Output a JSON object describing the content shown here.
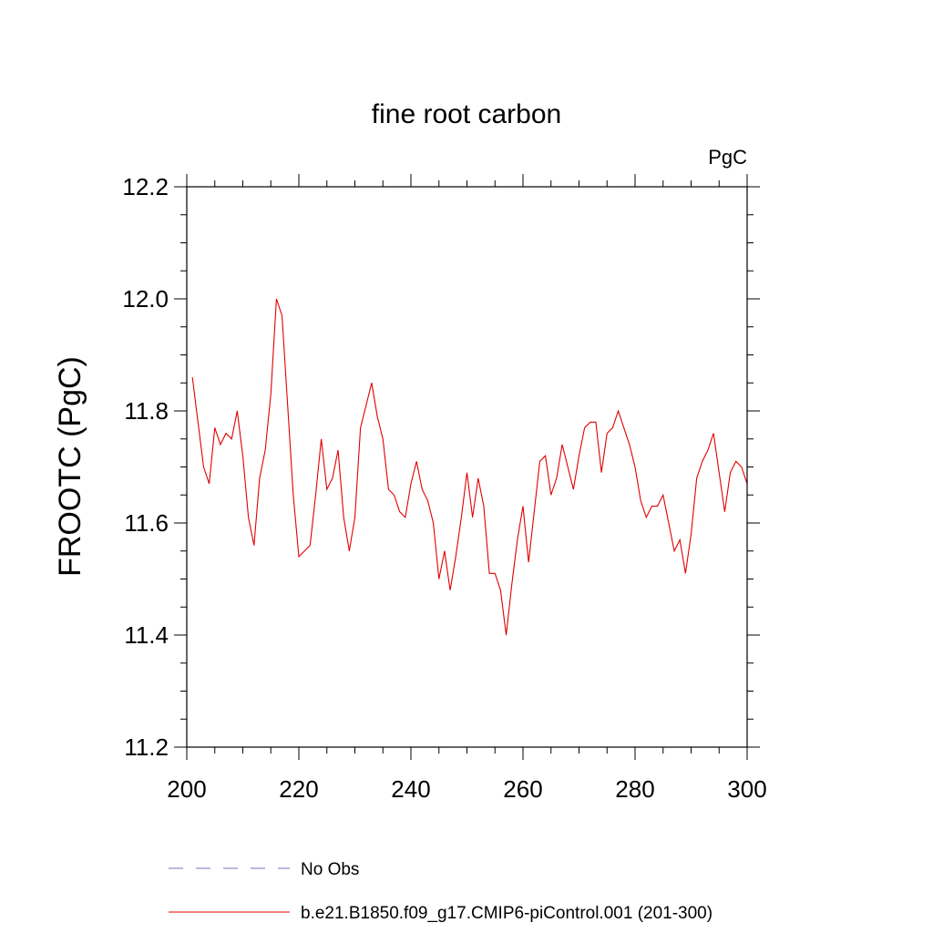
{
  "chart_data": {
    "type": "line",
    "title": "fine root carbon",
    "units": "PgC",
    "xlabel": "",
    "ylabel": "FROOTC  (PgC)",
    "xlim": [
      200,
      300
    ],
    "ylim": [
      11.2,
      12.2
    ],
    "x_ticks": [
      200,
      220,
      240,
      260,
      280,
      300
    ],
    "x_tick_labels": [
      "200",
      "220",
      "240",
      "260",
      "280",
      "300"
    ],
    "y_ticks": [
      11.2,
      11.4,
      11.6,
      11.8,
      12.0,
      12.2
    ],
    "y_tick_labels": [
      "11.2",
      "11.4",
      "11.6",
      "11.8",
      "12.0",
      "12.2"
    ],
    "grid": false,
    "legend_position": "bottom",
    "series": [
      {
        "name": "No Obs",
        "color": "#7a6fc0",
        "style": "dashed",
        "values": []
      },
      {
        "name": "b.e21.B1850.f09_g17.CMIP6-piControl.001 (201-300)",
        "color": "#e00000",
        "style": "solid",
        "x_start": 201,
        "x_step": 1,
        "values": [
          11.86,
          11.78,
          11.7,
          11.67,
          11.77,
          11.74,
          11.76,
          11.75,
          11.8,
          11.72,
          11.61,
          11.56,
          11.68,
          11.73,
          11.83,
          12.0,
          11.97,
          11.81,
          11.65,
          11.54,
          11.55,
          11.56,
          11.65,
          11.75,
          11.66,
          11.68,
          11.73,
          11.61,
          11.55,
          11.61,
          11.77,
          11.81,
          11.85,
          11.79,
          11.75,
          11.66,
          11.65,
          11.62,
          11.61,
          11.67,
          11.71,
          11.66,
          11.64,
          11.6,
          11.5,
          11.55,
          11.48,
          11.54,
          11.61,
          11.69,
          11.61,
          11.68,
          11.63,
          11.51,
          11.51,
          11.48,
          11.4,
          11.49,
          11.57,
          11.63,
          11.53,
          11.62,
          11.71,
          11.72,
          11.65,
          11.68,
          11.74,
          11.7,
          11.66,
          11.72,
          11.77,
          11.78,
          11.78,
          11.69,
          11.76,
          11.77,
          11.8,
          11.77,
          11.74,
          11.7,
          11.64,
          11.61,
          11.63,
          11.63,
          11.65,
          11.6,
          11.55,
          11.57,
          11.51,
          11.58,
          11.68,
          11.71,
          11.73,
          11.76,
          11.69,
          11.62,
          11.69,
          11.71,
          11.7,
          11.67
        ]
      }
    ]
  }
}
